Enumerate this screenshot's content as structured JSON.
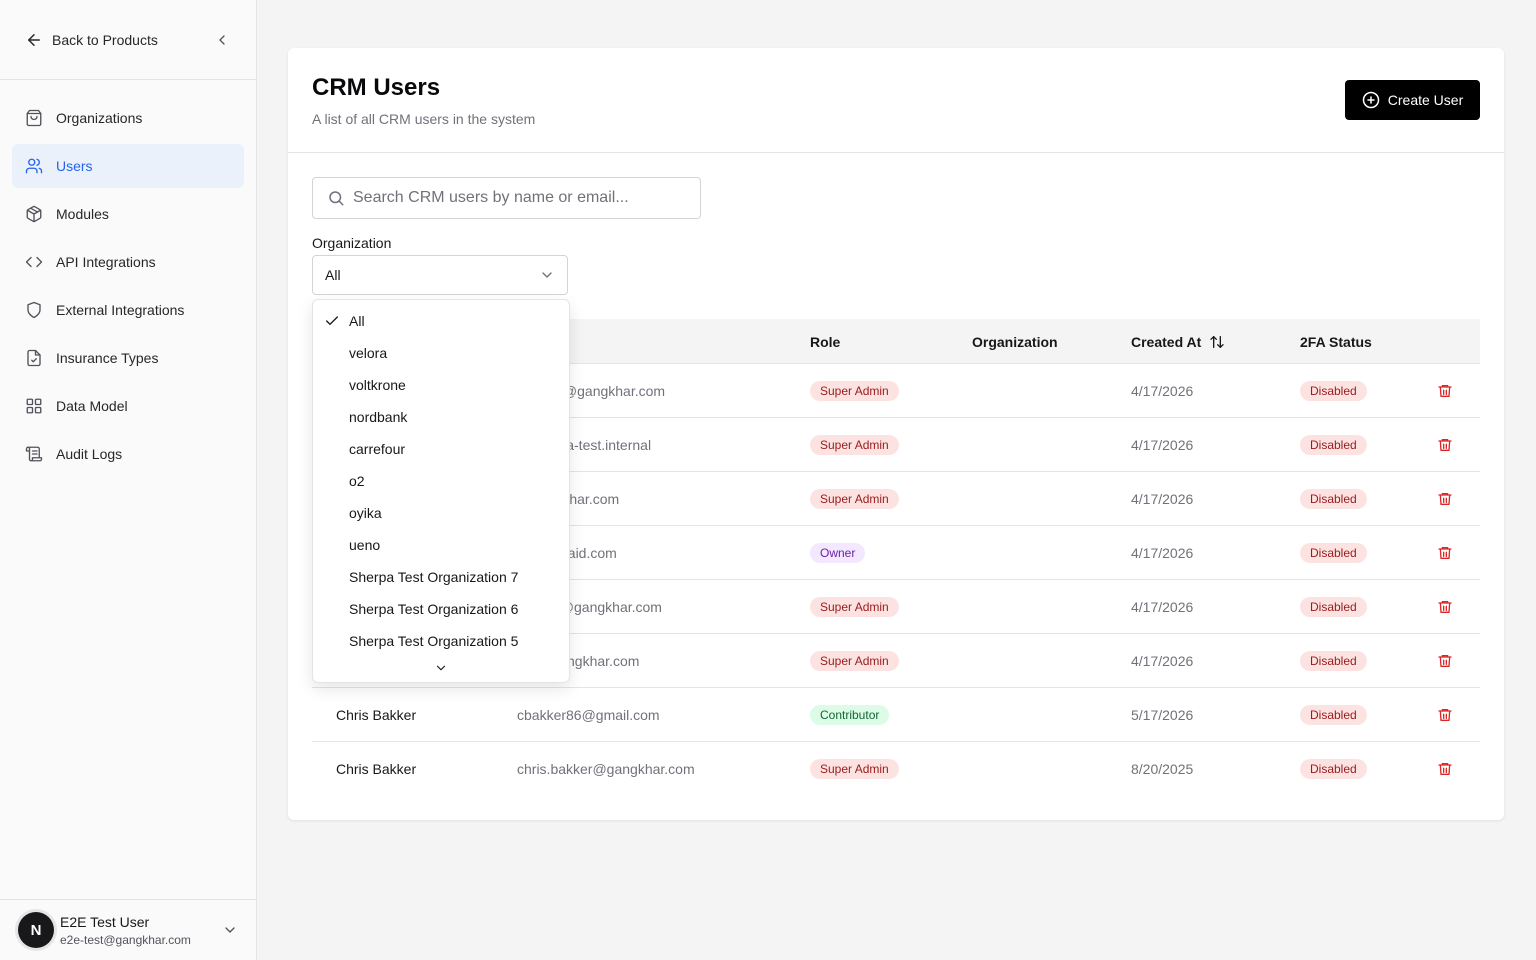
{
  "sidebar": {
    "back_label": "Back to Products",
    "items": [
      {
        "label": "Organizations",
        "icon": "shopping-bag-icon"
      },
      {
        "label": "Users",
        "icon": "users-icon",
        "active": true
      },
      {
        "label": "Modules",
        "icon": "cube-icon"
      },
      {
        "label": "API Integrations",
        "icon": "code-icon"
      },
      {
        "label": "External Integrations",
        "icon": "shield-icon"
      },
      {
        "label": "Insurance Types",
        "icon": "file-check-icon"
      },
      {
        "label": "Data Model",
        "icon": "grid-icon"
      },
      {
        "label": "Audit Logs",
        "icon": "scroll-icon"
      }
    ],
    "user": {
      "initial": "N",
      "name": "E2E Test User",
      "email": "e2e-test@gangkhar.com"
    }
  },
  "header": {
    "title": "CRM Users",
    "subtitle": "A list of all CRM users in the system",
    "create_label": "Create User"
  },
  "search": {
    "placeholder": "Search CRM users by name or email...",
    "value": ""
  },
  "filter": {
    "label": "Organization",
    "selected": "All"
  },
  "dropdown": {
    "options": [
      "All",
      "velora",
      "voltkrone",
      "nordbank",
      "carrefour",
      "o2",
      "oyika",
      "ueno",
      "Sherpa Test Organization 7",
      "Sherpa Test Organization 6",
      "Sherpa Test Organization 5"
    ]
  },
  "table": {
    "columns": {
      "role": "Role",
      "organization": "Organization",
      "created_at": "Created At",
      "tfa": "2FA Status"
    },
    "rows": [
      {
        "name": "",
        "email": "werring@gangkhar.com",
        "role": "Super Admin",
        "role_type": "super",
        "org": "",
        "created": "4/17/2026",
        "tfa": "Disabled"
      },
      {
        "name": "",
        "email": "@sherpa-test.internal",
        "role": "Super Admin",
        "role_type": "super",
        "org": "",
        "created": "4/17/2026",
        "tfa": "Disabled"
      },
      {
        "name": "",
        "email": "@gangkhar.com",
        "role": "Super Admin",
        "role_type": "super",
        "org": "",
        "created": "4/17/2026",
        "tfa": "Disabled"
      },
      {
        "name": "",
        "email": "21@sskaid.com",
        "role": "Owner",
        "role_type": "owner",
        "org": "",
        "created": "4/17/2026",
        "tfa": "Disabled"
      },
      {
        "name": "",
        "email": "gueras@gangkhar.com",
        "role": "Super Admin",
        "role_type": "super",
        "org": "",
        "created": "4/17/2026",
        "tfa": "Disabled"
      },
      {
        "name": "",
        "email": "ger@gangkhar.com",
        "role": "Super Admin",
        "role_type": "super",
        "org": "",
        "created": "4/17/2026",
        "tfa": "Disabled"
      },
      {
        "name": "Chris Bakker",
        "email": "cbakker86@gmail.com",
        "role": "Contributor",
        "role_type": "contrib",
        "org": "",
        "created": "5/17/2026",
        "tfa": "Disabled"
      },
      {
        "name": "Chris Bakker",
        "email": "chris.bakker@gangkhar.com",
        "role": "Super Admin",
        "role_type": "super",
        "org": "",
        "created": "8/20/2025",
        "tfa": "Disabled"
      }
    ]
  }
}
